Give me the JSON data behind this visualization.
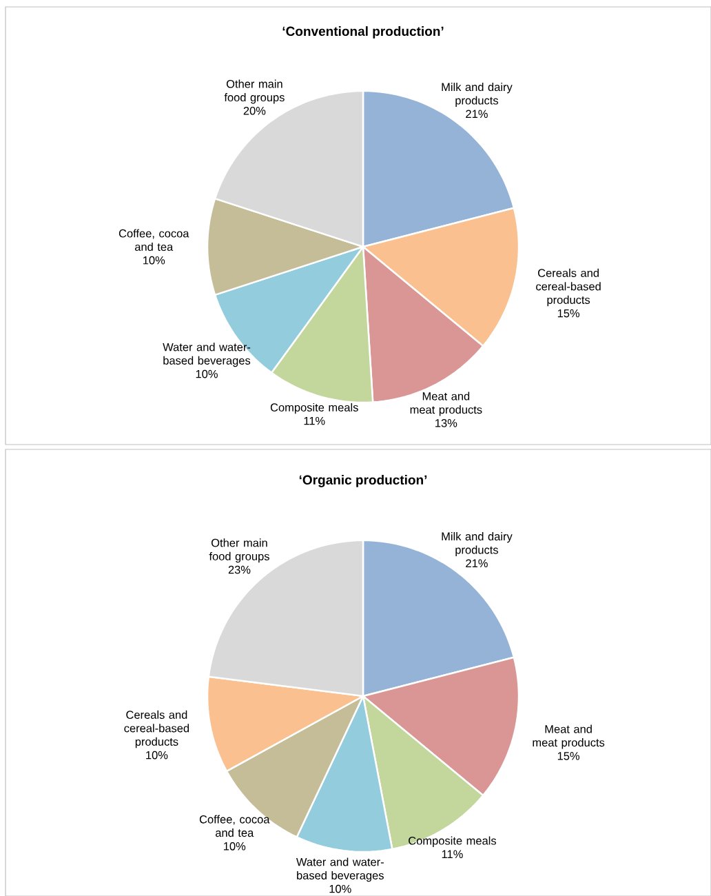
{
  "chart_data": [
    {
      "type": "pie",
      "title": "‘Conventional production’",
      "categories": [
        "Milk and dairy products",
        "Cereals and cereal-based products",
        "Meat and meat products",
        "Composite meals",
        "Water and water-based beverages",
        "Coffee, cocoa and tea",
        "Other main food groups"
      ],
      "values": [
        21,
        15,
        13,
        11,
        10,
        10,
        20
      ],
      "value_labels": [
        "21%",
        "15%",
        "13%",
        "11%",
        "10%",
        "10%",
        "20%"
      ],
      "colors": [
        "#95b3d7",
        "#fac090",
        "#d99694",
        "#c3d69b",
        "#93cddd",
        "#c4bd97",
        "#d9d9d9"
      ]
    },
    {
      "type": "pie",
      "title": "‘Organic production’",
      "categories": [
        "Milk and dairy products",
        "Meat and meat products",
        "Composite meals",
        "Water and water-based beverages",
        "Coffee, cocoa and tea",
        "Cereals and cereal-based products",
        "Other main food groups"
      ],
      "values": [
        21,
        15,
        11,
        10,
        10,
        10,
        23
      ],
      "value_labels": [
        "21%",
        "15%",
        "11%",
        "10%",
        "10%",
        "10%",
        "23%"
      ],
      "colors": [
        "#95b3d7",
        "#d99694",
        "#c3d69b",
        "#93cddd",
        "#c4bd97",
        "#fac090",
        "#d9d9d9"
      ]
    }
  ]
}
